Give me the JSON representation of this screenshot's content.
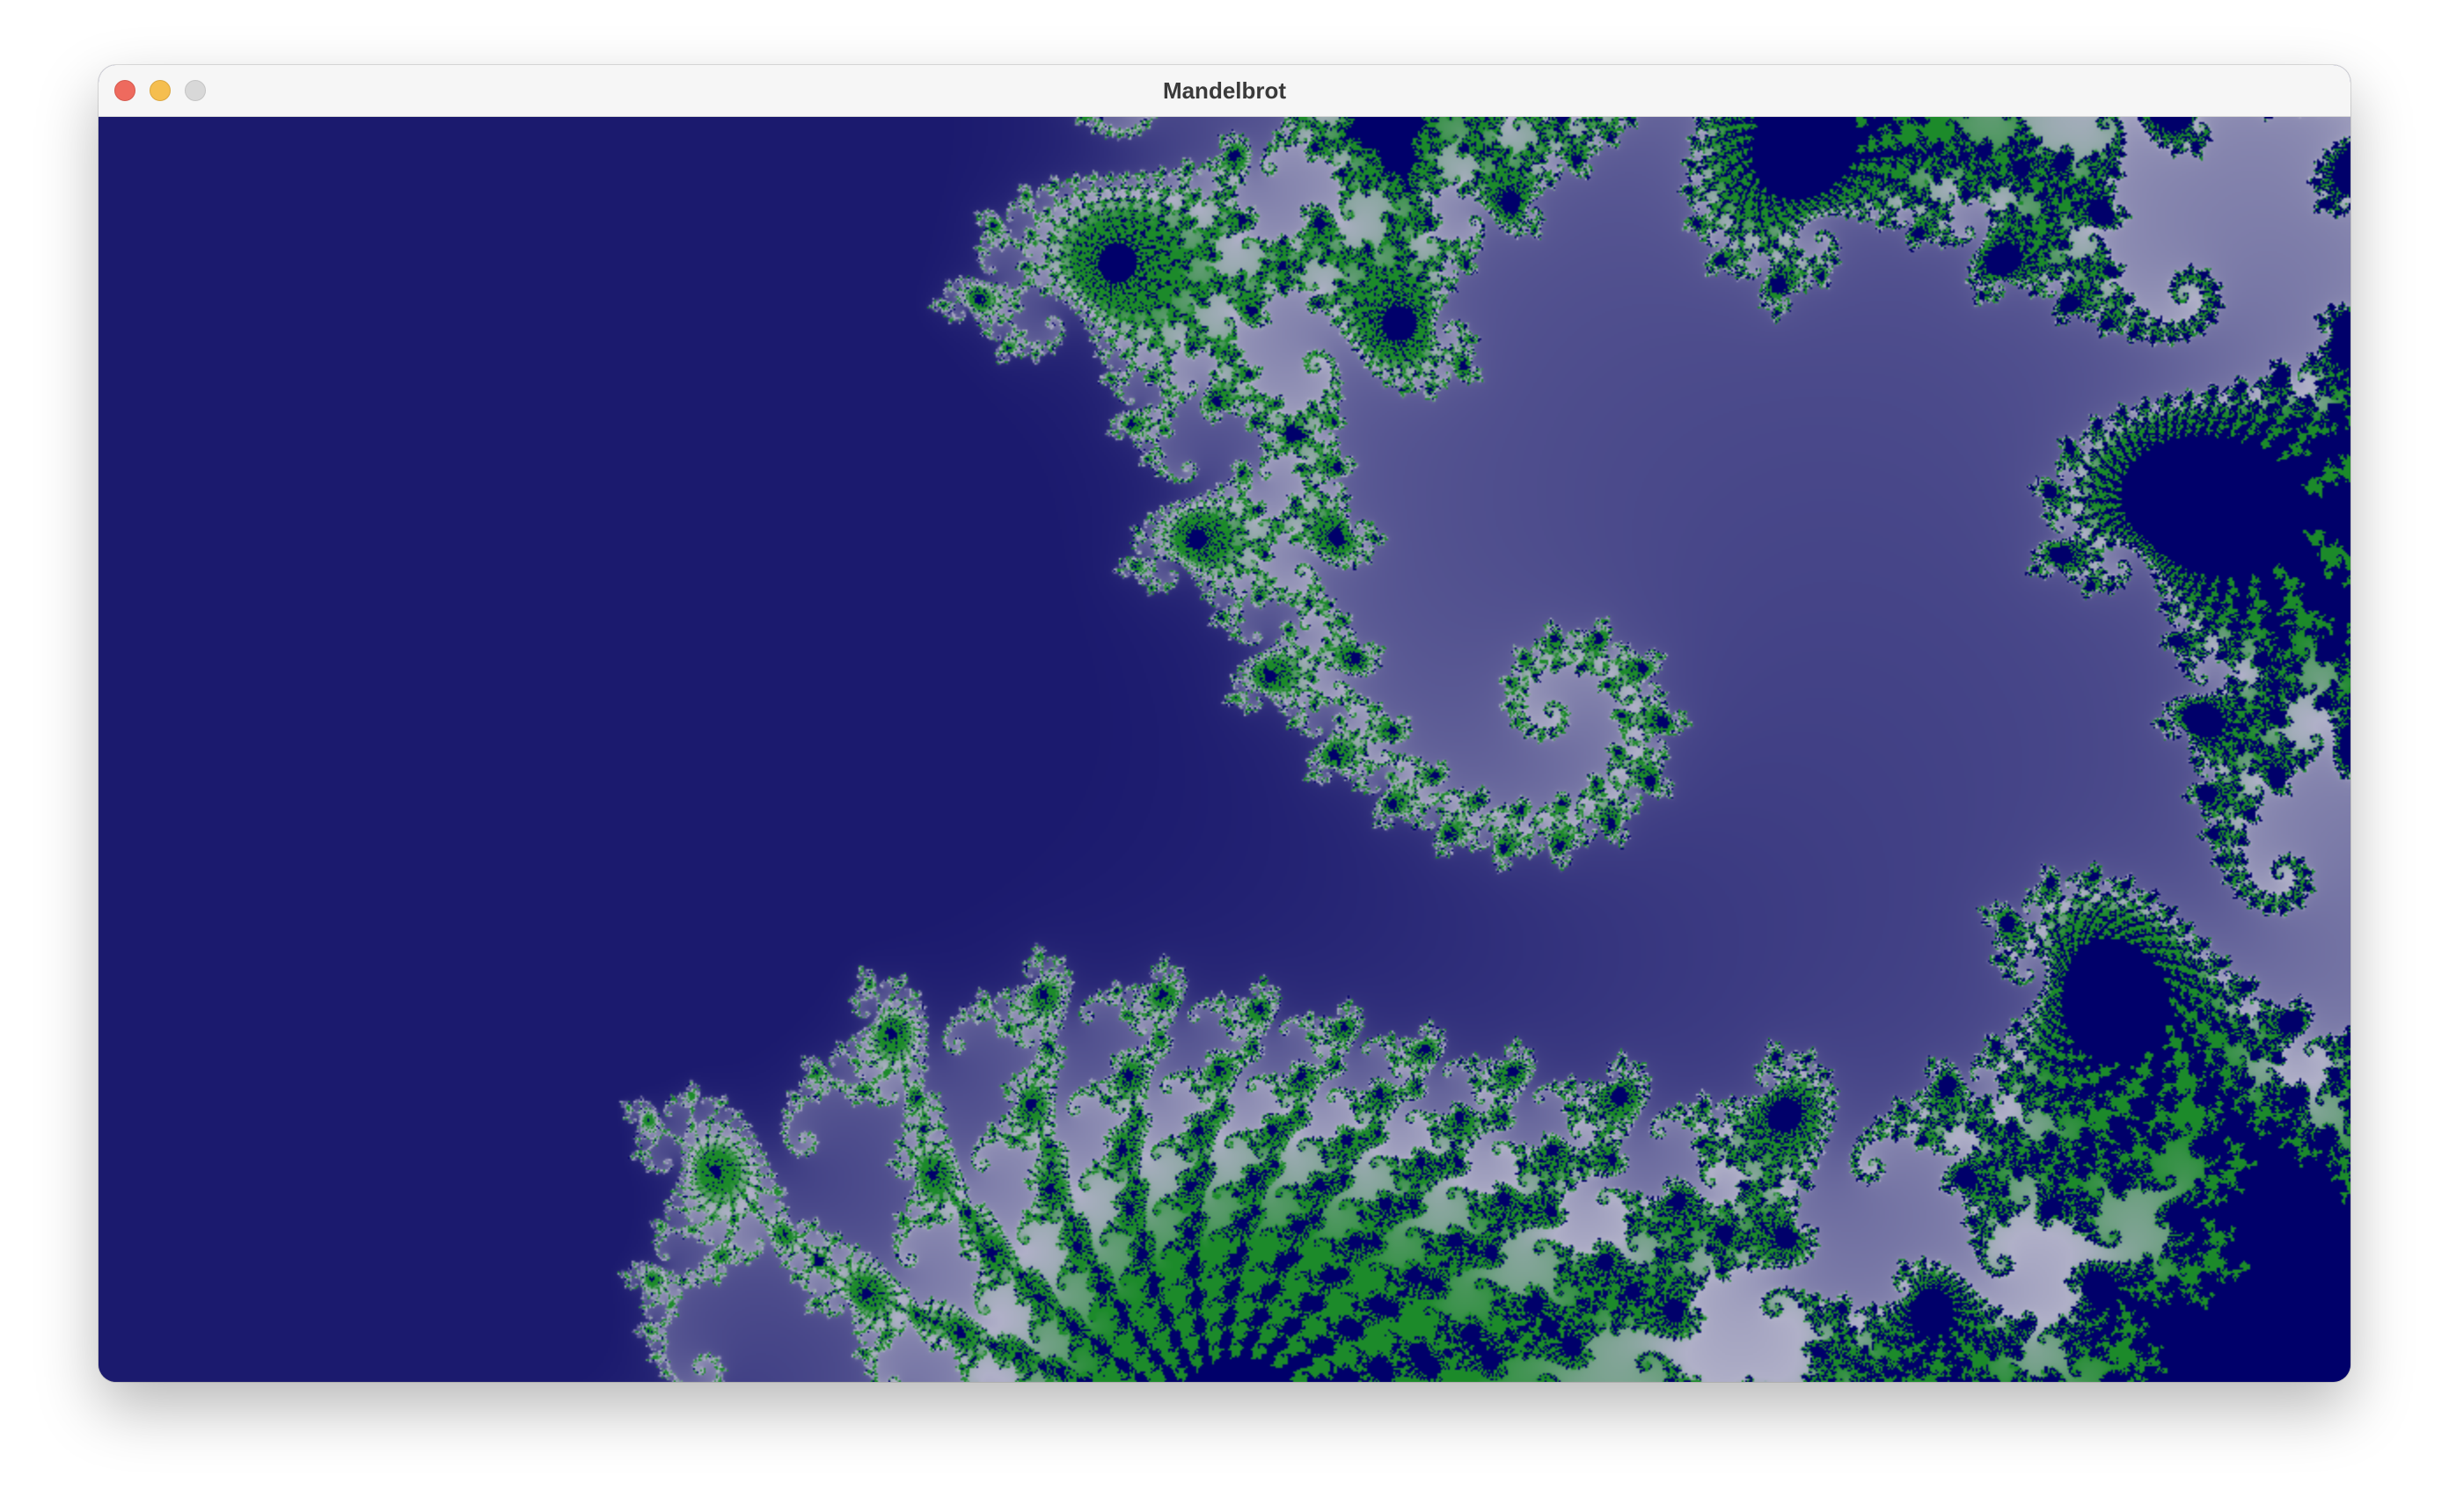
{
  "window": {
    "title": "Mandelbrot"
  },
  "view": {
    "exterior_color": "#1b1a6e",
    "interior_color": "#00006a",
    "filament_color": "#b0b0c8",
    "edge_color": "#1c8a2a"
  }
}
